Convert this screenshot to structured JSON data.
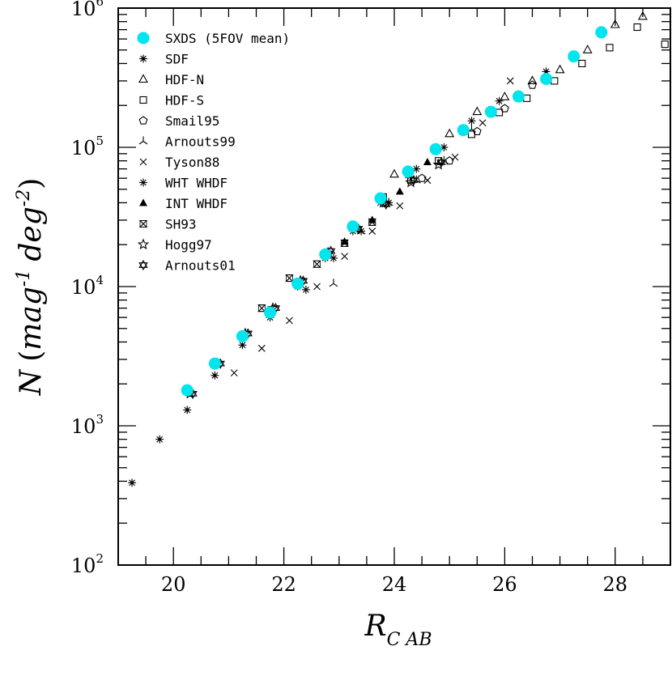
{
  "chart_data": {
    "type": "scatter",
    "title": "",
    "x_scale": "linear",
    "y_scale": "log",
    "xlim": [
      19,
      29
    ],
    "ylim": [
      100,
      1000000
    ],
    "x_ticks": [
      {
        "value": 20,
        "label": "20"
      },
      {
        "value": 22,
        "label": "22"
      },
      {
        "value": 24,
        "label": "24"
      },
      {
        "value": 26,
        "label": "26"
      },
      {
        "value": 28,
        "label": "28"
      }
    ],
    "y_ticks": [
      {
        "value": 100,
        "base": "10",
        "exp": "2"
      },
      {
        "value": 1000,
        "base": "10",
        "exp": "3"
      },
      {
        "value": 10000,
        "base": "10",
        "exp": "4"
      },
      {
        "value": 100000,
        "base": "10",
        "exp": "5"
      },
      {
        "value": 1000000,
        "base": "10",
        "exp": "6"
      }
    ],
    "xlabel": {
      "main": "R",
      "sub": "C AB"
    },
    "ylabel": {
      "n": "N",
      "open": "(",
      "mag": "mag",
      "mag_exp": "-1",
      "deg": "deg",
      "deg_exp": "-2",
      "close": ")"
    },
    "legend_position": "top-left",
    "series": [
      {
        "name": "SXDS (5FOV mean)",
        "marker": "filled-circle",
        "color": "#00e5ee",
        "points": [
          [
            20.25,
            1800
          ],
          [
            20.75,
            2800
          ],
          [
            21.25,
            4400
          ],
          [
            21.75,
            6500
          ],
          [
            22.25,
            10500
          ],
          [
            22.75,
            17000
          ],
          [
            23.25,
            27000
          ],
          [
            23.75,
            43000
          ],
          [
            24.25,
            67000
          ],
          [
            24.75,
            97000
          ],
          [
            25.25,
            133000
          ],
          [
            25.75,
            180000
          ],
          [
            26.25,
            232000
          ],
          [
            26.75,
            310000
          ],
          [
            27.25,
            450000
          ],
          [
            27.75,
            670000
          ]
        ]
      },
      {
        "name": "SDF",
        "marker": "asterisk",
        "color": "#000000",
        "points": [
          [
            19.25,
            390
          ],
          [
            19.75,
            800
          ],
          [
            20.25,
            1300
          ],
          [
            20.75,
            2300
          ],
          [
            21.25,
            3800
          ],
          [
            21.75,
            6000
          ],
          [
            22.25,
            10000
          ],
          [
            22.75,
            16000
          ],
          [
            23.25,
            25000
          ],
          [
            23.75,
            40000
          ],
          [
            24.25,
            63000
          ],
          [
            24.75,
            95000
          ],
          [
            25.25,
            130000
          ],
          [
            25.75,
            175000
          ],
          [
            26.25,
            240000
          ],
          [
            26.75,
            350000
          ],
          [
            27.25,
            450000
          ]
        ]
      },
      {
        "name": "HDF-N",
        "marker": "triangle",
        "color": "#000000",
        "points": [
          [
            24.0,
            64000
          ],
          [
            25.0,
            125000
          ],
          [
            25.5,
            180000
          ],
          [
            26.0,
            230000
          ],
          [
            26.5,
            300000
          ],
          [
            27.0,
            360000
          ],
          [
            27.5,
            500000
          ],
          [
            28.0,
            760000
          ],
          [
            28.5,
            870000
          ]
        ]
      },
      {
        "name": "HDF-S",
        "marker": "square",
        "color": "#000000",
        "points": [
          [
            23.8,
            44000
          ],
          [
            24.3,
            58000
          ],
          [
            24.8,
            80000
          ],
          [
            25.4,
            124000
          ],
          [
            25.9,
            178000
          ],
          [
            26.4,
            225000
          ],
          [
            26.9,
            300000
          ],
          [
            27.4,
            400000
          ],
          [
            27.9,
            520000
          ],
          [
            28.4,
            730000
          ],
          [
            28.9,
            550000
          ]
        ]
      },
      {
        "name": "Smail95",
        "marker": "pentagon",
        "color": "#000000",
        "points": [
          [
            24.5,
            60000
          ],
          [
            25.0,
            80000
          ],
          [
            25.5,
            130000
          ],
          [
            26.0,
            190000
          ],
          [
            26.5,
            280000
          ]
        ]
      },
      {
        "name": "Arnouts99",
        "marker": "tri-star",
        "color": "#000000",
        "points": [
          [
            22.9,
            10500
          ],
          [
            23.4,
            25000
          ],
          [
            23.9,
            40000
          ],
          [
            24.4,
            58000
          ],
          [
            24.9,
            80000
          ],
          [
            25.4,
            135000
          ]
        ]
      },
      {
        "name": "Tyson88",
        "marker": "cross",
        "color": "#000000",
        "points": [
          [
            21.1,
            2400
          ],
          [
            21.6,
            3600
          ],
          [
            22.1,
            5700
          ],
          [
            22.6,
            10000
          ],
          [
            23.1,
            16500
          ],
          [
            23.6,
            25000
          ],
          [
            24.1,
            38000
          ],
          [
            24.6,
            58000
          ],
          [
            25.1,
            85000
          ],
          [
            25.6,
            150000
          ],
          [
            26.1,
            300000
          ]
        ]
      },
      {
        "name": "WHT WHDF",
        "marker": "plus-star",
        "color": "#000000",
        "points": [
          [
            22.4,
            9500
          ],
          [
            22.9,
            16000
          ],
          [
            23.4,
            25000
          ],
          [
            23.9,
            40000
          ],
          [
            24.4,
            70000
          ],
          [
            24.9,
            100000
          ],
          [
            25.4,
            155000
          ],
          [
            25.9,
            215000
          ]
        ]
      },
      {
        "name": "INT WHDF",
        "marker": "filled-triangle",
        "color": "#000000",
        "points": [
          [
            23.1,
            21000
          ],
          [
            23.6,
            30000
          ],
          [
            24.1,
            48000
          ],
          [
            24.6,
            78000
          ]
        ]
      },
      {
        "name": "SH93",
        "marker": "hourglass",
        "color": "#000000",
        "points": [
          [
            21.6,
            7000
          ],
          [
            22.1,
            11500
          ],
          [
            22.6,
            14500
          ],
          [
            23.1,
            20500
          ],
          [
            23.6,
            29000
          ]
        ]
      },
      {
        "name": "Hogg97",
        "marker": "star",
        "color": "#000000",
        "points": [
          [
            20.3,
            1700
          ],
          [
            20.8,
            2800
          ],
          [
            21.3,
            4600
          ],
          [
            21.8,
            7000
          ],
          [
            22.3,
            11000
          ],
          [
            22.8,
            17500
          ],
          [
            23.3,
            26000
          ],
          [
            23.8,
            40000
          ],
          [
            24.3,
            56000
          ],
          [
            24.8,
            75000
          ]
        ]
      },
      {
        "name": "Arnouts01",
        "marker": "star-of-david",
        "color": "#000000",
        "points": [
          [
            20.35,
            1700
          ],
          [
            20.85,
            2800
          ],
          [
            21.35,
            4600
          ],
          [
            21.85,
            7000
          ],
          [
            22.35,
            11000
          ],
          [
            22.85,
            18000
          ],
          [
            23.35,
            26000
          ],
          [
            23.85,
            39000
          ],
          [
            24.35,
            58000
          ],
          [
            24.85,
            78000
          ]
        ]
      }
    ]
  }
}
